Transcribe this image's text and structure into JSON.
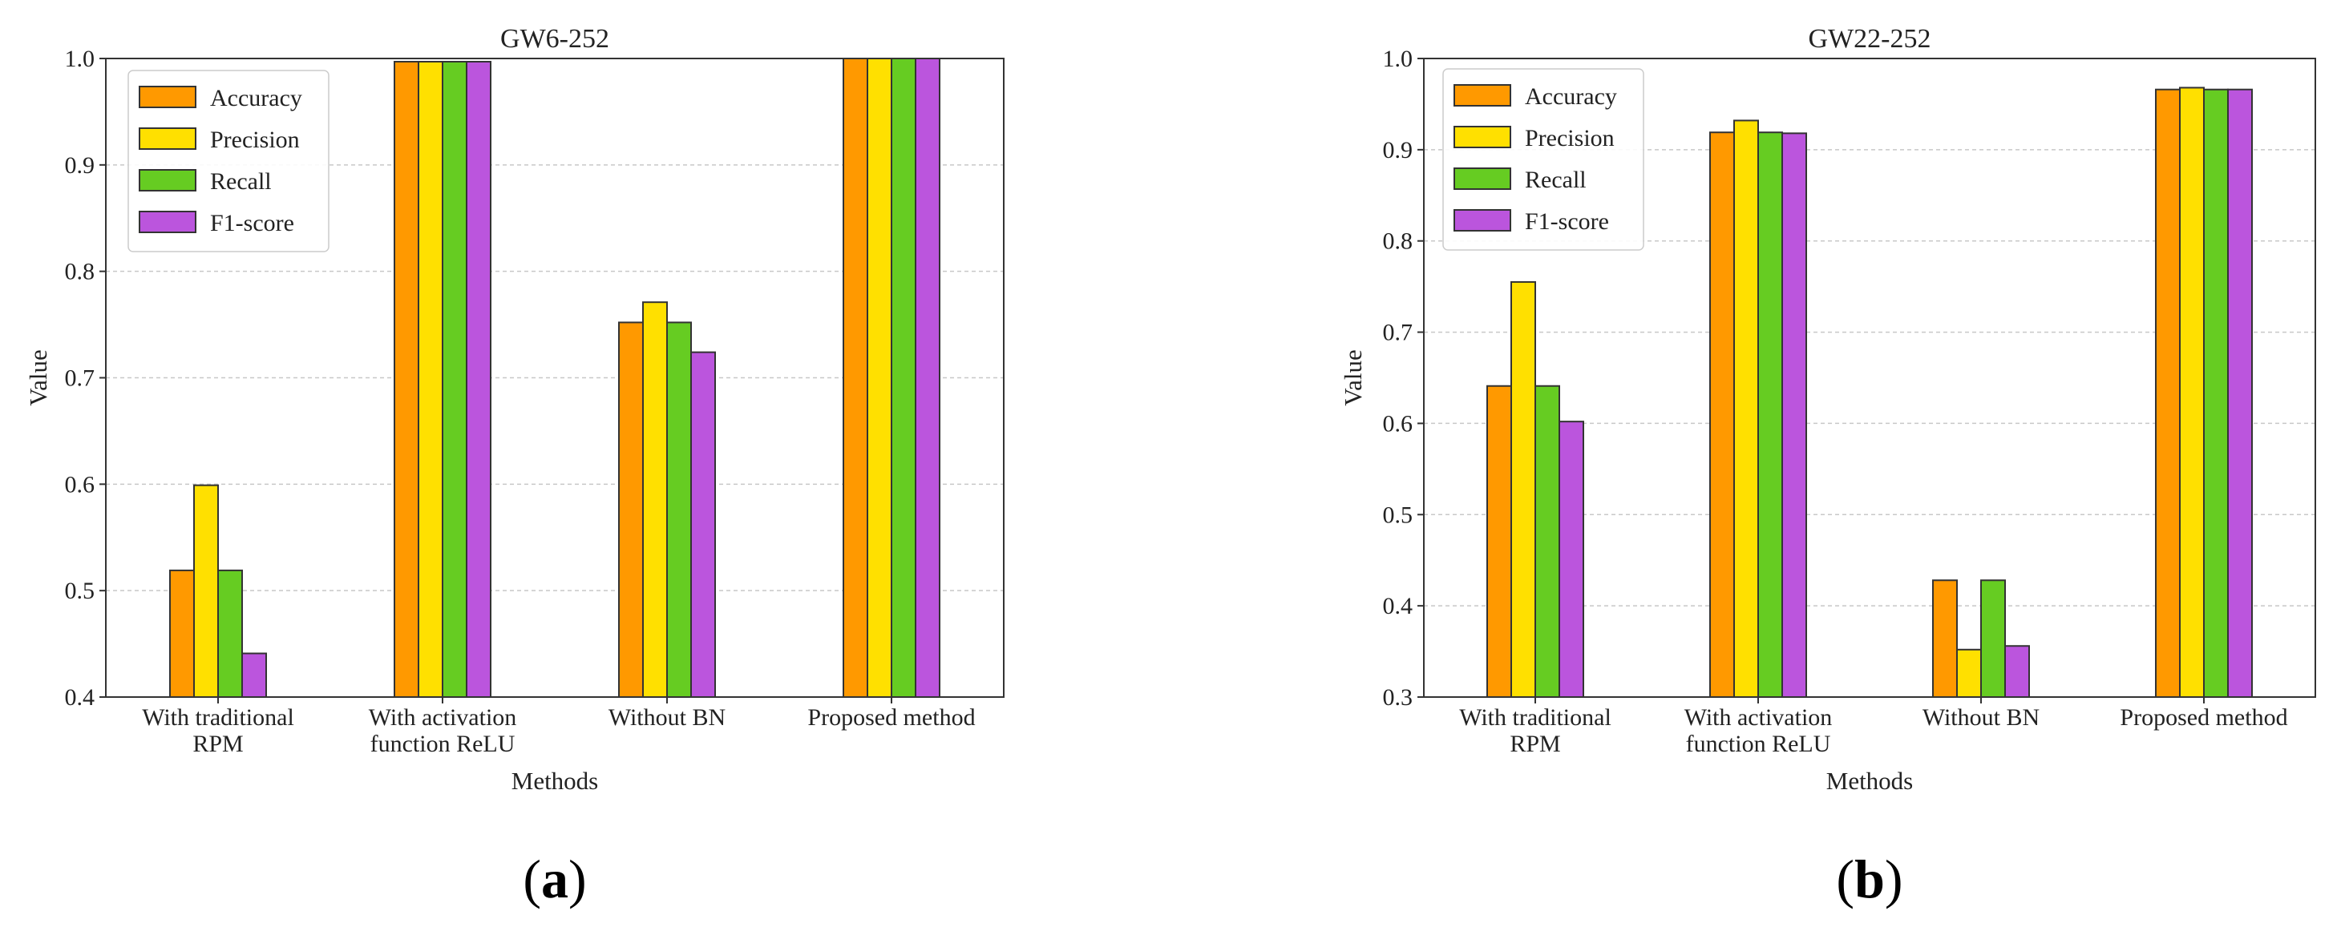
{
  "colors": {
    "Accuracy": "#ff9900",
    "Precision": "#ffe000",
    "Recall": "#66cc22",
    "F1-score": "#bb55dd"
  },
  "chart_data": [
    {
      "type": "bar",
      "title": "GW6-252",
      "panel_label": "a",
      "xlabel": "Methods",
      "ylabel": "Value",
      "ylim": [
        0.4,
        1.0
      ],
      "yticks": [
        "0.4",
        "0.5",
        "0.6",
        "0.7",
        "0.8",
        "0.9",
        "1.0"
      ],
      "grid": true,
      "legend_position": "top-left",
      "categories": [
        [
          "With traditional",
          "RPM"
        ],
        [
          "With activation",
          "function ReLU"
        ],
        [
          "Without BN"
        ],
        [
          "Proposed method"
        ]
      ],
      "series": [
        {
          "name": "Accuracy",
          "values": [
            0.519,
            0.997,
            0.752,
            1.0
          ]
        },
        {
          "name": "Precision",
          "values": [
            0.599,
            0.997,
            0.771,
            1.0
          ]
        },
        {
          "name": "Recall",
          "values": [
            0.519,
            0.997,
            0.752,
            1.0
          ]
        },
        {
          "name": "F1-score",
          "values": [
            0.441,
            0.997,
            0.724,
            1.0
          ]
        }
      ]
    },
    {
      "type": "bar",
      "title": "GW22-252",
      "panel_label": "b",
      "xlabel": "Methods",
      "ylabel": "Value",
      "ylim": [
        0.3,
        1.0
      ],
      "yticks": [
        "0.3",
        "0.4",
        "0.5",
        "0.6",
        "0.7",
        "0.8",
        "0.9",
        "1.0"
      ],
      "grid": true,
      "legend_position": "top-left",
      "categories": [
        [
          "With traditional",
          "RPM"
        ],
        [
          "With activation",
          "function ReLU"
        ],
        [
          "Without BN"
        ],
        [
          "Proposed method"
        ]
      ],
      "series": [
        {
          "name": "Accuracy",
          "values": [
            0.641,
            0.919,
            0.428,
            0.966
          ]
        },
        {
          "name": "Precision",
          "values": [
            0.755,
            0.932,
            0.352,
            0.968
          ]
        },
        {
          "name": "Recall",
          "values": [
            0.641,
            0.919,
            0.428,
            0.966
          ]
        },
        {
          "name": "F1-score",
          "values": [
            0.602,
            0.918,
            0.356,
            0.966
          ]
        }
      ]
    }
  ]
}
